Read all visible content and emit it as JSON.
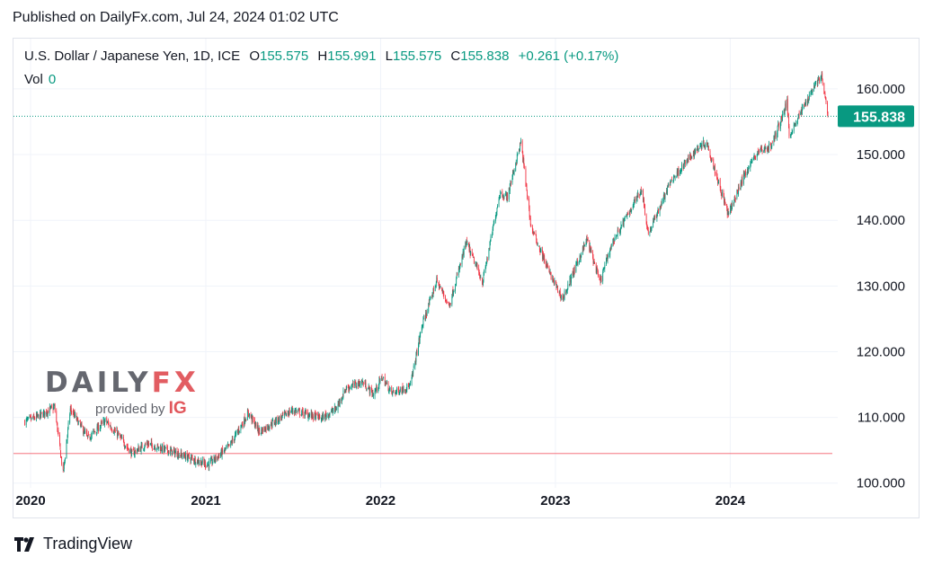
{
  "published": "Published on DailyFx.com, Jul 24, 2024 01:02 UTC",
  "legend": {
    "symbol": "U.S. Dollar / Japanese Yen, 1D, ICE",
    "o_label": "O",
    "o_value": "155.575",
    "h_label": "H",
    "h_value": "155.991",
    "l_label": "L",
    "l_value": "155.575",
    "c_label": "C",
    "c_value": "155.838",
    "change": "+0.261 (+0.17%)",
    "vol_label": "Vol",
    "vol_value": "0"
  },
  "watermark": {
    "daily": "DAILY",
    "fx": "FX",
    "provided": "provided by",
    "ig": "IG"
  },
  "footer": {
    "brand": "TradingView"
  },
  "colors": {
    "up": "#089981",
    "down": "#f23645",
    "price_label_bg": "#089981",
    "text": "#131722",
    "grid": "#f0f3fa"
  },
  "chart_data": {
    "type": "candlestick",
    "title": "U.S. Dollar / Japanese Yen, 1D, ICE",
    "ylim": [
      96.0,
      164.5
    ],
    "y_ticks": [
      "100.000",
      "110.000",
      "120.000",
      "130.000",
      "140.000",
      "150.000",
      "160.000"
    ],
    "x_ticks": [
      "2020",
      "2021",
      "2022",
      "2023",
      "2024"
    ],
    "last_price": "155.838",
    "reference_level": 104.5,
    "grid": true,
    "anchors": [
      [
        "2019-12-20",
        109.4
      ],
      [
        "2020-01-17",
        110.1
      ],
      [
        "2020-02-20",
        111.6
      ],
      [
        "2020-03-09",
        101.5
      ],
      [
        "2020-03-24",
        111.3
      ],
      [
        "2020-04-30",
        106.8
      ],
      [
        "2020-06-05",
        109.5
      ],
      [
        "2020-06-30",
        107.5
      ],
      [
        "2020-07-31",
        104.5
      ],
      [
        "2020-08-31",
        106.0
      ],
      [
        "2020-10-30",
        104.6
      ],
      [
        "2020-12-15",
        103.4
      ],
      [
        "2021-01-06",
        102.8
      ],
      [
        "2021-02-19",
        105.6
      ],
      [
        "2021-03-31",
        110.7
      ],
      [
        "2021-04-23",
        107.8
      ],
      [
        "2021-06-30",
        111.1
      ],
      [
        "2021-08-31",
        109.9
      ],
      [
        "2021-09-30",
        111.3
      ],
      [
        "2021-10-20",
        114.4
      ],
      [
        "2021-11-24",
        115.4
      ],
      [
        "2021-12-17",
        113.5
      ],
      [
        "2022-01-04",
        116.1
      ],
      [
        "2022-01-24",
        113.7
      ],
      [
        "2022-03-04",
        114.8
      ],
      [
        "2022-03-28",
        123.8
      ],
      [
        "2022-04-28",
        130.8
      ],
      [
        "2022-05-24",
        127.0
      ],
      [
        "2022-06-29",
        136.6
      ],
      [
        "2022-08-02",
        130.6
      ],
      [
        "2022-09-07",
        144.2
      ],
      [
        "2022-09-22",
        143.5
      ],
      [
        "2022-10-21",
        151.9
      ],
      [
        "2022-11-11",
        139.0
      ],
      [
        "2022-12-20",
        131.9
      ],
      [
        "2023-01-16",
        128.0
      ],
      [
        "2023-03-08",
        137.1
      ],
      [
        "2023-04-04",
        130.6
      ],
      [
        "2023-04-28",
        136.3
      ],
      [
        "2023-06-30",
        144.8
      ],
      [
        "2023-07-14",
        137.9
      ],
      [
        "2023-08-31",
        146.1
      ],
      [
        "2023-10-31",
        151.5
      ],
      [
        "2023-11-13",
        151.8
      ],
      [
        "2023-12-28",
        140.8
      ],
      [
        "2024-01-31",
        147.0
      ],
      [
        "2024-02-28",
        150.5
      ],
      [
        "2024-03-27",
        151.3
      ],
      [
        "2024-04-29",
        158.0
      ],
      [
        "2024-05-03",
        152.9
      ],
      [
        "2024-06-28",
        161.0
      ],
      [
        "2024-07-10",
        161.8
      ],
      [
        "2024-07-23",
        155.84
      ]
    ]
  }
}
